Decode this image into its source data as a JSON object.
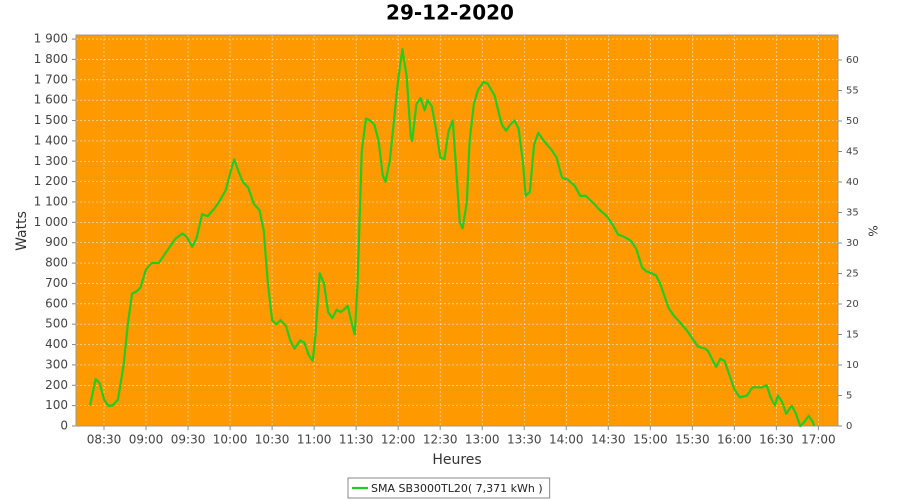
{
  "chart_data": {
    "type": "line",
    "title": "29-12-2020",
    "x_label": "Heures",
    "y_label": "Watts",
    "y2_label": "%",
    "x": [
      "08:20",
      "08:24",
      "08:27",
      "08:30",
      "08:33",
      "08:36",
      "08:40",
      "08:44",
      "08:47",
      "08:50",
      "08:53",
      "08:56",
      "09:00",
      "09:04",
      "09:09",
      "09:13",
      "09:17",
      "09:21",
      "09:26",
      "09:29",
      "09:33",
      "09:36",
      "09:40",
      "09:44",
      "09:49",
      "09:53",
      "09:57",
      "10:00",
      "10:03",
      "10:06",
      "10:09",
      "10:13",
      "10:17",
      "10:21",
      "10:24",
      "10:27",
      "10:30",
      "10:33",
      "10:36",
      "10:40",
      "10:43",
      "10:46",
      "10:50",
      "10:53",
      "10:56",
      "10:59",
      "11:01",
      "11:04",
      "11:07",
      "11:10",
      "11:13",
      "11:16",
      "11:19",
      "11:21",
      "11:24",
      "11:27",
      "11:29",
      "11:31",
      "11:34",
      "11:37",
      "11:40",
      "11:43",
      "11:46",
      "11:49",
      "11:51",
      "11:54",
      "11:57",
      "12:00",
      "12:03",
      "12:06",
      "12:09",
      "12:10",
      "12:13",
      "12:16",
      "12:19",
      "12:21",
      "12:24",
      "12:27",
      "12:30",
      "12:33",
      "12:36",
      "12:39",
      "12:41",
      "12:44",
      "12:46",
      "12:49",
      "12:51",
      "12:54",
      "12:57",
      "13:01",
      "13:04",
      "13:09",
      "13:11",
      "13:14",
      "13:17",
      "13:20",
      "13:23",
      "13:26",
      "13:29",
      "13:31",
      "13:34",
      "13:37",
      "13:40",
      "13:44",
      "13:49",
      "13:53",
      "13:57",
      "14:01",
      "14:06",
      "14:10",
      "14:14",
      "14:20",
      "14:24",
      "14:29",
      "14:33",
      "14:37",
      "14:41",
      "14:46",
      "14:50",
      "14:54",
      "14:57",
      "15:01",
      "15:04",
      "15:07",
      "15:10",
      "15:13",
      "15:17",
      "15:21",
      "15:26",
      "15:30",
      "15:34",
      "15:39",
      "15:41",
      "15:44",
      "15:47",
      "15:50",
      "15:53",
      "15:56",
      "16:00",
      "16:04",
      "16:09",
      "16:13",
      "16:17",
      "16:20",
      "16:23",
      "16:26",
      "16:29",
      "16:31",
      "16:34",
      "16:37",
      "16:41",
      "16:44",
      "16:47",
      "16:50",
      "16:53",
      "16:56",
      "16:57"
    ],
    "series": [
      {
        "name": "SMA SB3000TL20( 7,371 kWh )",
        "color": "#22cc22",
        "values": [
          100,
          230,
          210,
          130,
          100,
          100,
          130,
          300,
          500,
          650,
          660,
          680,
          770,
          800,
          800,
          840,
          880,
          920,
          945,
          930,
          880,
          920,
          1040,
          1030,
          1070,
          1110,
          1160,
          1240,
          1310,
          1250,
          1200,
          1170,
          1090,
          1060,
          960,
          700,
          520,
          500,
          520,
          490,
          420,
          380,
          420,
          410,
          350,
          320,
          450,
          750,
          700,
          560,
          530,
          570,
          560,
          570,
          590,
          500,
          450,
          700,
          1350,
          1510,
          1500,
          1480,
          1400,
          1230,
          1200,
          1300,
          1500,
          1700,
          1850,
          1720,
          1420,
          1400,
          1580,
          1610,
          1550,
          1600,
          1570,
          1460,
          1320,
          1310,
          1450,
          1500,
          1300,
          1000,
          970,
          1100,
          1400,
          1580,
          1650,
          1690,
          1680,
          1620,
          1560,
          1480,
          1450,
          1480,
          1500,
          1460,
          1300,
          1130,
          1150,
          1380,
          1440,
          1400,
          1360,
          1320,
          1220,
          1210,
          1180,
          1130,
          1130,
          1090,
          1060,
          1030,
          990,
          940,
          930,
          910,
          870,
          780,
          760,
          750,
          740,
          700,
          640,
          580,
          540,
          510,
          470,
          430,
          390,
          380,
          370,
          330,
          290,
          330,
          320,
          260,
          180,
          140,
          150,
          190,
          190,
          190,
          200,
          140,
          100,
          150,
          120,
          60,
          100,
          60,
          0,
          20,
          50,
          20,
          0
        ]
      }
    ],
    "xlim": [
      "08:10",
      "17:14"
    ],
    "xticks": [
      "08:30",
      "09:00",
      "09:30",
      "10:00",
      "10:30",
      "11:00",
      "11:30",
      "12:00",
      "12:30",
      "13:00",
      "13:30",
      "14:00",
      "14:30",
      "15:00",
      "15:30",
      "16:00",
      "16:30",
      "17:00"
    ],
    "ylim": [
      0,
      1920
    ],
    "yticks": [
      0,
      100,
      200,
      300,
      400,
      500,
      600,
      700,
      800,
      900,
      {
        "value": 1000,
        "label": "1 000"
      },
      {
        "value": 1100,
        "label": "1 100"
      },
      {
        "value": 1200,
        "label": "1 200"
      },
      {
        "value": 1300,
        "label": "1 300"
      },
      {
        "value": 1400,
        "label": "1 400"
      },
      {
        "value": 1500,
        "label": "1 500"
      },
      {
        "value": 1600,
        "label": "1 600"
      },
      {
        "value": 1700,
        "label": "1 700"
      },
      {
        "value": 1800,
        "label": "1 800"
      },
      {
        "value": 1900,
        "label": "1 900"
      }
    ],
    "y2lim": [
      0,
      64.1
    ],
    "y2ticks": [
      0,
      5,
      10,
      15,
      20,
      25,
      30,
      35,
      40,
      45,
      50,
      55,
      60
    ],
    "grid": true,
    "background": "#ff9900",
    "legend": "bottom"
  }
}
